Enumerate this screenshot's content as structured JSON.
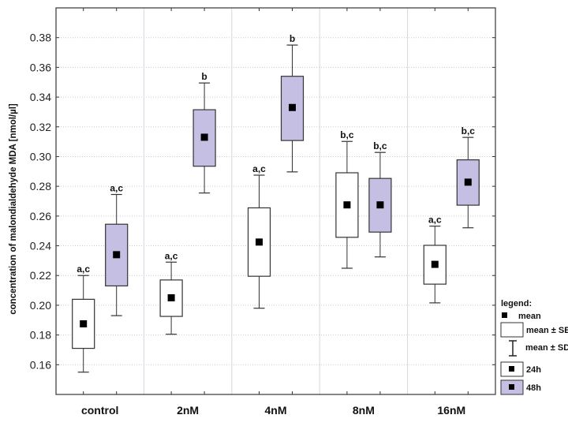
{
  "chart_data": {
    "type": "box",
    "title": "",
    "xlabel": "",
    "ylabel": "concentration of malondialdehyde MDA [nmol/µl]",
    "ylim": [
      0.14,
      0.4
    ],
    "yticks": [
      0.16,
      0.18,
      0.2,
      0.22,
      0.24,
      0.26,
      0.28,
      0.3,
      0.32,
      0.34,
      0.36,
      0.38
    ],
    "grid": true,
    "categories": [
      "control",
      "2nM",
      "4nM",
      "8nM",
      "16nM"
    ],
    "series": [
      {
        "name": "24h",
        "color": "#ffffff",
        "mean": [
          0.1875,
          0.205,
          0.2425,
          0.2675,
          0.2275
        ],
        "se_low": [
          0.171,
          0.1925,
          0.2195,
          0.2457,
          0.2142
        ],
        "se_high": [
          0.204,
          0.217,
          0.2655,
          0.2891,
          0.2403
        ],
        "sd_low": [
          0.155,
          0.1805,
          0.198,
          0.2249,
          0.2016
        ],
        "sd_high": [
          0.22,
          0.229,
          0.2875,
          0.3102,
          0.2532
        ],
        "labels": [
          "a,c",
          "a,c",
          "a,c",
          "b,c",
          "a,c"
        ]
      },
      {
        "name": "48h",
        "color": "#c5bfe3",
        "mean": [
          0.234,
          0.313,
          0.333,
          0.2675,
          0.2828
        ],
        "se_low": [
          0.213,
          0.2935,
          0.3108,
          0.2492,
          0.2673
        ],
        "se_high": [
          0.2545,
          0.3315,
          0.354,
          0.2853,
          0.2978
        ],
        "sd_low": [
          0.193,
          0.2755,
          0.2897,
          0.2325,
          0.2521
        ],
        "sd_high": [
          0.2745,
          0.3495,
          0.375,
          0.3028,
          0.3129
        ],
        "labels": [
          "a,c",
          "b",
          "b",
          "b,c",
          "b,c"
        ]
      }
    ],
    "legend": {
      "placement": "bottom-right outside",
      "title": "legend:",
      "mean": "mean",
      "se": "mean ± SE",
      "sd": "mean ± SD",
      "s1": "24h",
      "s2": "48h"
    }
  }
}
